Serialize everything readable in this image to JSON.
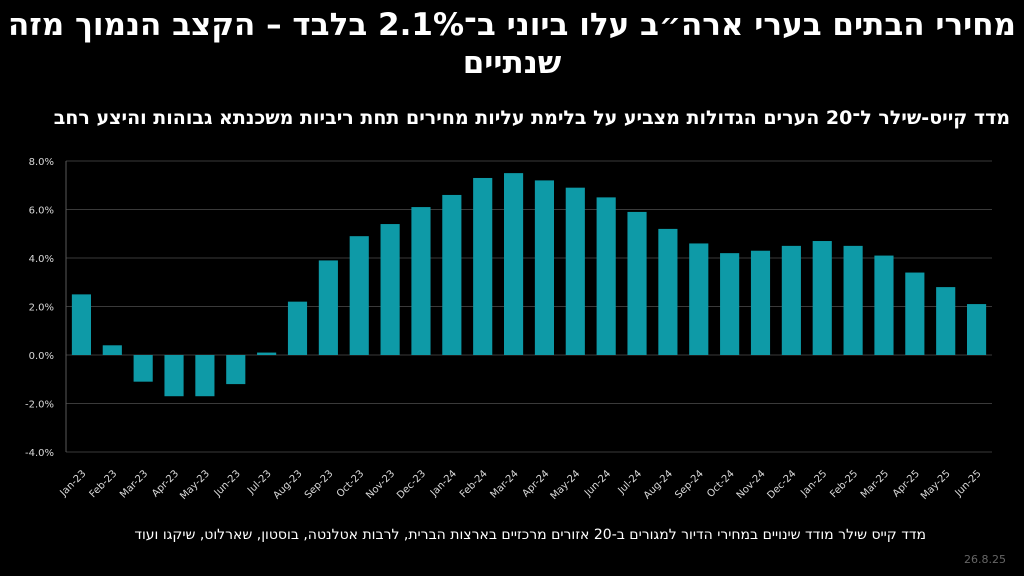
{
  "title": "מחירי הבתים בערי ארה״ב עלו ביוני ב־2.1% בלבד – הקצב הנמוך מזה שנתיים",
  "subtitle": "מדד קייס-שילר ל־20 הערים הגדולות מצביע על בלימת עליות מחירים תחת ריביות משכנתא גבוהות והיצע רחב",
  "footnote": "מדד קייס שילר מודד שינויים במחירי הדיור למגורים ב-20 אזורים מרכזיים בארצות הברית, לרבות אטלנטה, בוסטון, שארלוט, שיקגו ועוד",
  "date": "26.8.25",
  "chart_data": {
    "type": "bar",
    "title": "",
    "xlabel": "",
    "ylabel": "",
    "ylim": [
      -4,
      8
    ],
    "yticks": [
      "-4.0%",
      "-2.0%",
      "0.0%",
      "2.0%",
      "4.0%",
      "6.0%",
      "8.0%"
    ],
    "grid": true,
    "bar_color": "#0e9aa7",
    "categories": [
      "Jan-23",
      "Feb-23",
      "Mar-23",
      "Apr-23",
      "May-23",
      "Jun-23",
      "Jul-23",
      "Aug-23",
      "Sep-23",
      "Oct-23",
      "Nov-23",
      "Dec-23",
      "Jan-24",
      "Feb-24",
      "Mar-24",
      "Apr-24",
      "May-24",
      "Jun-24",
      "Jul-24",
      "Aug-24",
      "Sep-24",
      "Oct-24",
      "Nov-24",
      "Dec-24",
      "Jan-25",
      "Feb-25",
      "Mar-25",
      "Apr-25",
      "May-25",
      "Jun-25"
    ],
    "values": [
      2.5,
      0.4,
      -1.1,
      -1.7,
      -1.7,
      -1.2,
      0.1,
      2.2,
      3.9,
      4.9,
      5.4,
      6.1,
      6.6,
      7.3,
      7.5,
      7.2,
      6.9,
      6.5,
      5.9,
      5.2,
      4.6,
      4.2,
      4.3,
      4.5,
      4.7,
      4.5,
      4.1,
      3.4,
      2.8,
      2.1
    ]
  }
}
